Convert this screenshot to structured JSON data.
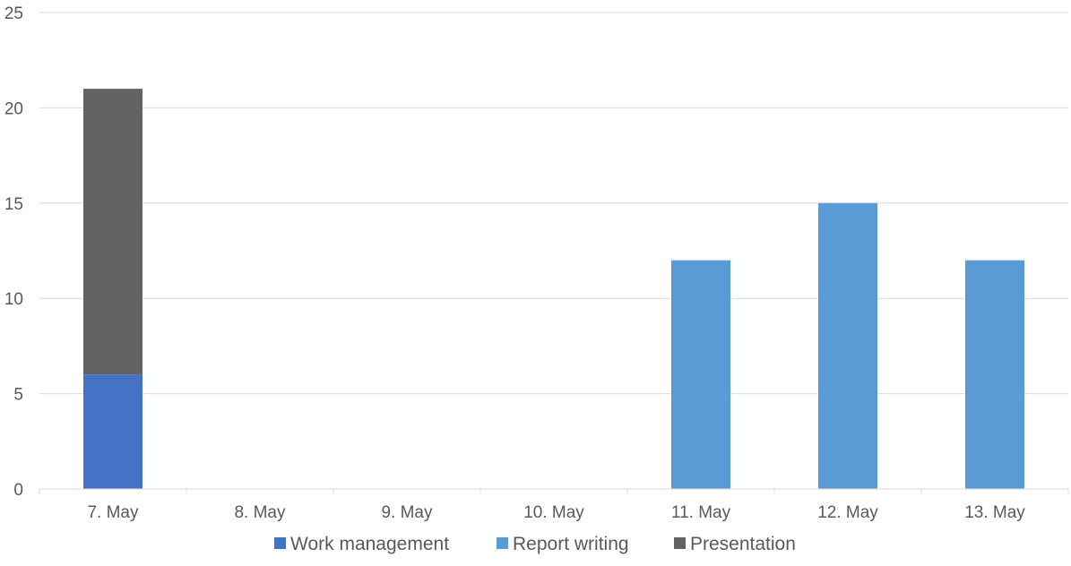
{
  "chart_data": {
    "type": "bar",
    "stacked": true,
    "categories": [
      "7. May",
      "8. May",
      "9. May",
      "10. May",
      "11. May",
      "12. May",
      "13. May"
    ],
    "series": [
      {
        "name": "Work management",
        "color": "#4472C4",
        "values": [
          6,
          0,
          0,
          0,
          0,
          0,
          0
        ]
      },
      {
        "name": "Report writing",
        "color": "#5B9BD5",
        "values": [
          0,
          0,
          0,
          0,
          12,
          15,
          12
        ]
      },
      {
        "name": "Presentation",
        "color": "#636363",
        "values": [
          15,
          0,
          0,
          0,
          0,
          0,
          0
        ]
      }
    ],
    "ylim": [
      0,
      25
    ],
    "yticks": [
      0,
      5,
      10,
      15,
      20,
      25
    ],
    "grid": true,
    "legend": "bottom"
  }
}
